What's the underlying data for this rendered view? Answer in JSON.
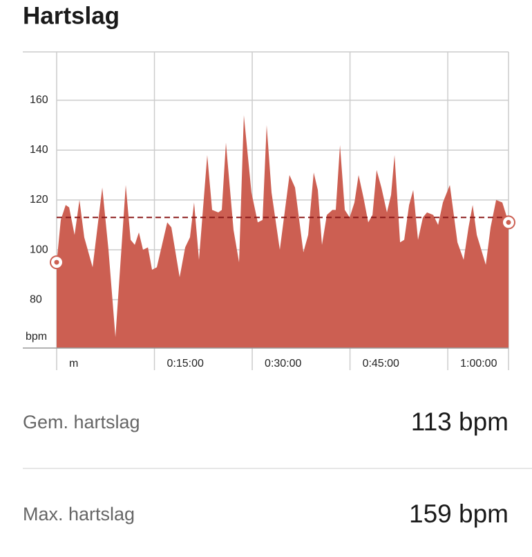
{
  "title": "Hartslag",
  "chart_data": {
    "type": "area",
    "y_label": "bpm",
    "x": [
      0,
      38,
      83,
      115,
      165,
      210,
      254,
      331,
      420,
      477,
      541,
      636,
      681,
      719,
      757,
      795,
      840,
      878,
      922,
      1018,
      1056,
      1132,
      1183,
      1227,
      1265,
      1310,
      1386,
      1431,
      1488,
      1520,
      1558,
      1628,
      1679,
      1723,
      1793,
      1851,
      1895,
      1933,
      1978,
      2054,
      2143,
      2194,
      2271,
      2315,
      2366,
      2404,
      2442,
      2487,
      2538,
      2569,
      2608,
      2652,
      2697,
      2741,
      2779,
      2824,
      2868,
      2907,
      2945,
      2989,
      3040,
      3078,
      3110,
      3161,
      3199,
      3244,
      3282,
      3326,
      3371,
      3409,
      3466,
      3511,
      3555,
      3619,
      3689,
      3746,
      3791,
      3829,
      3867,
      3950,
      3994,
      4045,
      4102,
      4159
    ],
    "series": [
      {
        "color": "#cc5f52",
        "values": [
          95,
          112,
          118,
          117,
          106,
          120,
          105,
          93,
          125,
          100,
          65,
          126,
          104,
          102,
          107,
          100,
          101,
          92,
          93,
          111,
          109,
          89,
          101,
          105,
          119,
          96,
          138,
          116,
          115,
          116,
          143,
          108,
          95,
          154,
          123,
          111,
          112,
          150,
          123,
          100,
          130,
          125,
          99,
          106,
          131,
          124,
          102,
          114,
          116,
          116,
          142,
          116,
          113,
          119,
          130,
          121,
          111,
          114,
          132,
          125,
          115,
          122,
          138,
          103,
          104,
          118,
          124,
          104,
          113,
          115,
          114,
          110,
          119,
          126,
          103,
          96,
          109,
          118,
          106,
          94,
          109,
          120,
          119,
          111
        ]
      }
    ],
    "average": 113,
    "average_color": "#8b1a1a",
    "xlim": [
      0,
      4159
    ],
    "ylim": [
      60.6,
      179.4
    ],
    "xticks": [
      {
        "value": 0,
        "label": "m"
      },
      {
        "value": 900,
        "label": "0:15:00"
      },
      {
        "value": 1800,
        "label": "0:30:00"
      },
      {
        "value": 2700,
        "label": "0:45:00"
      },
      {
        "value": 3600,
        "label": "1:00:00"
      }
    ],
    "yticks": [
      80,
      100,
      120,
      140,
      160
    ],
    "grid": true
  },
  "stats": [
    {
      "label": "Gem. hartslag",
      "value": "113 bpm"
    },
    {
      "label": "Max. hartslag",
      "value": "159 bpm"
    }
  ]
}
